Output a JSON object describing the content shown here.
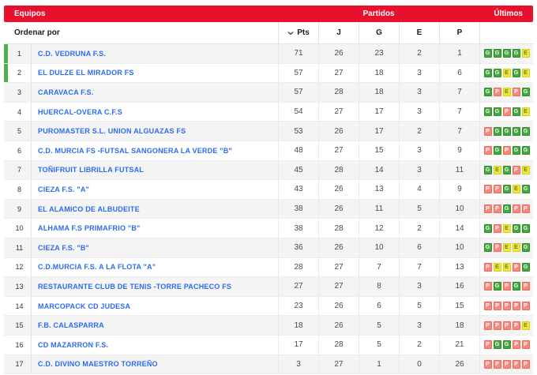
{
  "header": {
    "equipos_label": "Equipos",
    "partidos_label": "Partidos",
    "ultimos_label": "Últimos"
  },
  "subheader": {
    "ordenar_label": "Ordenar por",
    "sort_column": "Pts",
    "columns": [
      "J",
      "G",
      "E",
      "P"
    ]
  },
  "colors": {
    "header_red": "#E8112D",
    "team_link_blue": "#2B6BF3",
    "promotion_green": "#4CAF50",
    "win_chip": "#44A83D",
    "draw_chip": "#EDE939",
    "loss_chip": "#F9877D",
    "row_alt_gray": "#F4F4F4"
  },
  "rows": [
    {
      "pos": 1,
      "team": "C.D. VEDRUNA F.S.",
      "pts": 71,
      "j": 26,
      "g": 23,
      "e": 2,
      "p": 1,
      "last": [
        "G",
        "G",
        "G",
        "G",
        "E"
      ],
      "promo": true
    },
    {
      "pos": 2,
      "team": "EL DULZE EL MIRADOR FS",
      "pts": 57,
      "j": 27,
      "g": 18,
      "e": 3,
      "p": 6,
      "last": [
        "G",
        "G",
        "E",
        "G",
        "E"
      ],
      "promo": true
    },
    {
      "pos": 3,
      "team": "CARAVACA F.S.",
      "pts": 57,
      "j": 28,
      "g": 18,
      "e": 3,
      "p": 7,
      "last": [
        "G",
        "P",
        "E",
        "P",
        "G"
      ],
      "promo": false
    },
    {
      "pos": 4,
      "team": "HUERCAL-OVERA C.F.S",
      "pts": 54,
      "j": 27,
      "g": 17,
      "e": 3,
      "p": 7,
      "last": [
        "G",
        "G",
        "P",
        "G",
        "E"
      ],
      "promo": false
    },
    {
      "pos": 5,
      "team": "PUROMASTER S.L. UNION ALGUAZAS FS",
      "pts": 53,
      "j": 26,
      "g": 17,
      "e": 2,
      "p": 7,
      "last": [
        "P",
        "G",
        "G",
        "G",
        "G"
      ],
      "promo": false
    },
    {
      "pos": 6,
      "team": "C.D. MURCIA FS -FUTSAL SANGONERA LA VERDE \"B\"",
      "pts": 48,
      "j": 27,
      "g": 15,
      "e": 3,
      "p": 9,
      "last": [
        "P",
        "G",
        "P",
        "G",
        "G"
      ],
      "promo": false
    },
    {
      "pos": 7,
      "team": "TOÑIFRUIT LIBRILLA FUTSAL",
      "pts": 45,
      "j": 28,
      "g": 14,
      "e": 3,
      "p": 11,
      "last": [
        "G",
        "E",
        "G",
        "P",
        "E"
      ],
      "promo": false
    },
    {
      "pos": 8,
      "team": "CIEZA F.S. \"A\"",
      "pts": 43,
      "j": 26,
      "g": 13,
      "e": 4,
      "p": 9,
      "last": [
        "P",
        "P",
        "G",
        "E",
        "G"
      ],
      "promo": false
    },
    {
      "pos": 9,
      "team": "EL ALAMICO DE ALBUDEITE",
      "pts": 38,
      "j": 26,
      "g": 11,
      "e": 5,
      "p": 10,
      "last": [
        "P",
        "P",
        "G",
        "P",
        "P"
      ],
      "promo": false
    },
    {
      "pos": 10,
      "team": "ALHAMA F.S PRIMAFRIO \"B\"",
      "pts": 38,
      "j": 28,
      "g": 12,
      "e": 2,
      "p": 14,
      "last": [
        "G",
        "P",
        "E",
        "G",
        "G"
      ],
      "promo": false
    },
    {
      "pos": 11,
      "team": "CIEZA F.S. \"B\"",
      "pts": 36,
      "j": 26,
      "g": 10,
      "e": 6,
      "p": 10,
      "last": [
        "G",
        "P",
        "E",
        "E",
        "G"
      ],
      "promo": false
    },
    {
      "pos": 12,
      "team": "C.D.MURCIA F.S. A LA FLOTA \"A\"",
      "pts": 28,
      "j": 27,
      "g": 7,
      "e": 7,
      "p": 13,
      "last": [
        "P",
        "E",
        "E",
        "P",
        "G"
      ],
      "promo": false
    },
    {
      "pos": 13,
      "team": "RESTAURANTE CLUB DE TENIS -TORRE PACHECO FS",
      "pts": 27,
      "j": 27,
      "g": 8,
      "e": 3,
      "p": 16,
      "last": [
        "P",
        "G",
        "P",
        "G",
        "P"
      ],
      "promo": false
    },
    {
      "pos": 14,
      "team": "MARCOPACK CD JUDESA",
      "pts": 23,
      "j": 26,
      "g": 6,
      "e": 5,
      "p": 15,
      "last": [
        "P",
        "P",
        "P",
        "P",
        "P"
      ],
      "promo": false
    },
    {
      "pos": 15,
      "team": "F.B. CALASPARRA",
      "pts": 18,
      "j": 26,
      "g": 5,
      "e": 3,
      "p": 18,
      "last": [
        "P",
        "P",
        "P",
        "P",
        "E"
      ],
      "promo": false
    },
    {
      "pos": 16,
      "team": "CD MAZARRON F.S.",
      "pts": 17,
      "j": 28,
      "g": 5,
      "e": 2,
      "p": 21,
      "last": [
        "P",
        "G",
        "G",
        "P",
        "P"
      ],
      "promo": false
    },
    {
      "pos": 17,
      "team": "C.D. DIVINO MAESTRO TORREÑO",
      "pts": 3,
      "j": 27,
      "g": 1,
      "e": 0,
      "p": 26,
      "last": [
        "P",
        "P",
        "P",
        "P",
        "P"
      ],
      "promo": false
    }
  ]
}
